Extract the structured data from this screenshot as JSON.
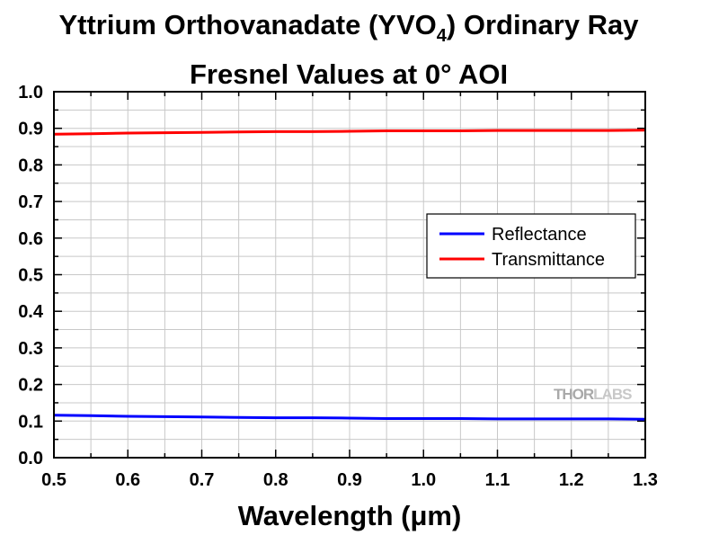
{
  "chart_data": {
    "type": "line",
    "title_main": "Yttrium Orthovanadate (YVO",
    "title_subscript": "4",
    "title_suffix": ") Ordinary Ray",
    "title_line2": "Fresnel Values at 0° AOI",
    "xlabel": "Wavelength (μm)",
    "ylabel": "",
    "xlim": [
      0.5,
      1.3
    ],
    "ylim": [
      0.0,
      1.0
    ],
    "x_ticks": [
      "0.5",
      "0.6",
      "0.7",
      "0.8",
      "0.9",
      "1.0",
      "1.1",
      "1.2",
      "1.3"
    ],
    "y_ticks": [
      "0.0",
      "0.1",
      "0.2",
      "0.3",
      "0.4",
      "0.5",
      "0.6",
      "0.7",
      "0.8",
      "0.9",
      "1.0"
    ],
    "grid": true,
    "legend_position": "right-middle",
    "series": [
      {
        "name": "Reflectance",
        "color": "#0000ff",
        "x": [
          0.5,
          0.55,
          0.6,
          0.65,
          0.7,
          0.75,
          0.8,
          0.85,
          0.9,
          0.95,
          1.0,
          1.05,
          1.1,
          1.15,
          1.2,
          1.25,
          1.3
        ],
        "y": [
          0.116,
          0.115,
          0.113,
          0.112,
          0.111,
          0.11,
          0.109,
          0.109,
          0.108,
          0.107,
          0.107,
          0.107,
          0.106,
          0.106,
          0.106,
          0.106,
          0.105
        ]
      },
      {
        "name": "Transmittance",
        "color": "#ff0000",
        "x": [
          0.5,
          0.55,
          0.6,
          0.65,
          0.7,
          0.75,
          0.8,
          0.85,
          0.9,
          0.95,
          1.0,
          1.05,
          1.1,
          1.15,
          1.2,
          1.25,
          1.3
        ],
        "y": [
          0.884,
          0.885,
          0.887,
          0.888,
          0.889,
          0.89,
          0.891,
          0.891,
          0.892,
          0.893,
          0.893,
          0.893,
          0.894,
          0.894,
          0.894,
          0.894,
          0.895
        ]
      }
    ]
  },
  "watermark": {
    "text_left": "THOR",
    "text_right": "LABS",
    "color_left": "#a9a9a9",
    "color_right": "#c8c8c8"
  }
}
